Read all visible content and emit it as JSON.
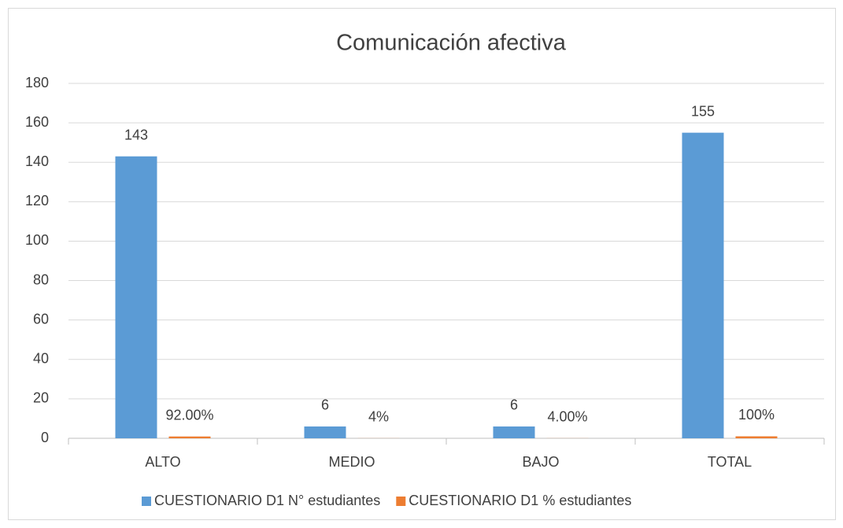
{
  "chart_data": {
    "type": "bar",
    "title": "Comunicación afectiva",
    "categories": [
      "ALTO",
      "MEDIO",
      "BAJO",
      "TOTAL"
    ],
    "series": [
      {
        "name": "CUESTIONARIO D1 N° estudiantes",
        "color": "#5b9bd5",
        "values": [
          143,
          6,
          6,
          155
        ]
      },
      {
        "name": "CUESTIONARIO D1 % estudiantes",
        "color": "#ed7d31",
        "values": [
          0.92,
          0.04,
          0.04,
          1
        ],
        "value_labels": [
          "92.00%",
          "4%",
          "4.00%",
          "100%"
        ]
      }
    ],
    "ylim": [
      0,
      180
    ],
    "yticks": [
      0,
      20,
      40,
      60,
      80,
      100,
      120,
      140,
      160,
      180
    ],
    "grid": true,
    "legend": "bottom"
  }
}
